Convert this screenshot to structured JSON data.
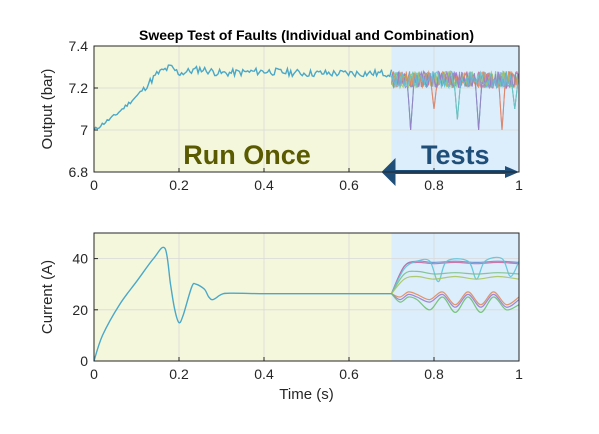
{
  "chart_data": [
    {
      "type": "line",
      "title": "Sweep Test of Faults (Individual and Combination)",
      "xlabel": "",
      "ylabel": "Output (bar)",
      "xlim": [
        0,
        1
      ],
      "ylim": [
        6.8,
        7.4
      ],
      "x_ticks": [
        "0",
        "0.2",
        "0.4",
        "0.6",
        "0.8",
        "1"
      ],
      "y_ticks": [
        "6.8",
        "7",
        "7.2",
        "7.4"
      ],
      "grid": true,
      "regions": [
        {
          "label": "Run Once",
          "x_range": [
            0,
            0.7
          ],
          "color": "#f5f7dc",
          "text_color": "#5a5a00"
        },
        {
          "label": "Tests",
          "x_range": [
            0.7,
            1
          ],
          "color": "#dcedfb",
          "text_color": "#1f4e79"
        }
      ],
      "arrow": {
        "from": 0.7,
        "to": 1,
        "color": "#1f4e79"
      },
      "series_color": "#4aa8c8",
      "baseline": [
        [
          0,
          7.0
        ],
        [
          0.05,
          7.07
        ],
        [
          0.1,
          7.16
        ],
        [
          0.15,
          7.27
        ],
        [
          0.18,
          7.3
        ],
        [
          0.2,
          7.27
        ],
        [
          0.25,
          7.29
        ],
        [
          0.3,
          7.27
        ],
        [
          0.4,
          7.28
        ],
        [
          0.5,
          7.27
        ],
        [
          0.6,
          7.27
        ],
        [
          0.7,
          7.27
        ]
      ],
      "test_noise": {
        "start": 0.7,
        "end": 1.0,
        "center": 7.24,
        "spread": 0.04
      },
      "dips": [
        {
          "x": 0.745,
          "y": 7.0
        },
        {
          "x": 0.8,
          "y": 7.1
        },
        {
          "x": 0.855,
          "y": 7.05
        },
        {
          "x": 0.905,
          "y": 7.0
        },
        {
          "x": 0.96,
          "y": 7.0
        },
        {
          "x": 0.99,
          "y": 7.1
        }
      ]
    },
    {
      "type": "line",
      "title": "",
      "xlabel": "Time (s)",
      "ylabel": "Current (A)",
      "xlim": [
        0,
        1
      ],
      "ylim": [
        0,
        50
      ],
      "x_ticks": [
        "0",
        "0.2",
        "0.4",
        "0.6",
        "0.8",
        "1"
      ],
      "y_ticks": [
        "0",
        "20",
        "40"
      ],
      "grid": true,
      "regions": [
        {
          "label": "",
          "x_range": [
            0,
            0.7
          ],
          "color": "#f5f7dc"
        },
        {
          "label": "",
          "x_range": [
            0.7,
            1
          ],
          "color": "#dcedfb"
        }
      ],
      "base_series": {
        "color": "#4aa8c8",
        "points": [
          [
            0,
            0
          ],
          [
            0.02,
            10
          ],
          [
            0.06,
            22
          ],
          [
            0.1,
            31
          ],
          [
            0.14,
            40
          ],
          [
            0.167,
            44
          ],
          [
            0.18,
            30
          ],
          [
            0.19,
            20
          ],
          [
            0.2,
            15
          ],
          [
            0.21,
            18
          ],
          [
            0.23,
            29
          ],
          [
            0.24,
            30
          ],
          [
            0.26,
            28
          ],
          [
            0.27,
            25
          ],
          [
            0.28,
            24
          ],
          [
            0.3,
            26
          ],
          [
            0.32,
            26.5
          ],
          [
            0.4,
            26.3
          ],
          [
            0.5,
            26.3
          ],
          [
            0.6,
            26.3
          ],
          [
            0.7,
            26.3
          ]
        ]
      },
      "test_series": [
        {
          "color": "#6a8fd0",
          "points": [
            [
              0.7,
              26.3
            ],
            [
              0.73,
              37
            ],
            [
              0.76,
              39
            ],
            [
              0.8,
              38.5
            ],
            [
              0.85,
              39
            ],
            [
              0.9,
              38.5
            ],
            [
              0.95,
              39
            ],
            [
              1.0,
              38.5
            ]
          ]
        },
        {
          "color": "#c86aa0",
          "points": [
            [
              0.7,
              26.3
            ],
            [
              0.73,
              37
            ],
            [
              0.76,
              38.5
            ],
            [
              0.8,
              38
            ],
            [
              0.85,
              38.5
            ],
            [
              0.9,
              38
            ],
            [
              0.95,
              38.5
            ],
            [
              1.0,
              38
            ]
          ]
        },
        {
          "color": "#5bc4d8",
          "points": [
            [
              0.7,
              26.3
            ],
            [
              0.73,
              36
            ],
            [
              0.76,
              39
            ],
            [
              0.79,
              39
            ],
            [
              0.81,
              31
            ],
            [
              0.83,
              39
            ],
            [
              0.88,
              39
            ],
            [
              0.9,
              32
            ],
            [
              0.92,
              39
            ],
            [
              0.96,
              40
            ],
            [
              0.98,
              33
            ],
            [
              1.0,
              39
            ]
          ]
        },
        {
          "color": "#7ac08a",
          "points": [
            [
              0.7,
              26.3
            ],
            [
              0.73,
              34
            ],
            [
              0.76,
              35
            ],
            [
              0.8,
              34
            ],
            [
              0.85,
              34.5
            ],
            [
              0.9,
              34
            ],
            [
              0.95,
              34.5
            ],
            [
              1.0,
              34
            ]
          ]
        },
        {
          "color": "#a9c460",
          "points": [
            [
              0.7,
              26.3
            ],
            [
              0.73,
              32
            ],
            [
              0.76,
              33
            ],
            [
              0.8,
              32
            ],
            [
              0.85,
              33
            ],
            [
              0.9,
              32
            ],
            [
              0.95,
              33
            ],
            [
              1.0,
              32
            ]
          ]
        },
        {
          "color": "#e08a5a",
          "points": [
            [
              0.7,
              26.3
            ],
            [
              0.72,
              25
            ],
            [
              0.74,
              27
            ],
            [
              0.76,
              26
            ],
            [
              0.79,
              24
            ],
            [
              0.82,
              27
            ],
            [
              0.85,
              22
            ],
            [
              0.88,
              27
            ],
            [
              0.91,
              22
            ],
            [
              0.94,
              27
            ],
            [
              0.97,
              22
            ],
            [
              1.0,
              25
            ]
          ]
        },
        {
          "color": "#9a7ad0",
          "points": [
            [
              0.7,
              26.3
            ],
            [
              0.72,
              24
            ],
            [
              0.74,
              26
            ],
            [
              0.76,
              25
            ],
            [
              0.79,
              23
            ],
            [
              0.82,
              26
            ],
            [
              0.85,
              21
            ],
            [
              0.88,
              26
            ],
            [
              0.91,
              21
            ],
            [
              0.94,
              26
            ],
            [
              0.97,
              21
            ],
            [
              1.0,
              24
            ]
          ]
        },
        {
          "color": "#6cbf70",
          "points": [
            [
              0.7,
              26.3
            ],
            [
              0.72,
              23
            ],
            [
              0.74,
              25
            ],
            [
              0.76,
              24
            ],
            [
              0.79,
              20
            ],
            [
              0.82,
              25
            ],
            [
              0.85,
              19
            ],
            [
              0.88,
              25
            ],
            [
              0.91,
              19
            ],
            [
              0.94,
              25
            ],
            [
              0.97,
              20
            ],
            [
              1.0,
              22
            ]
          ]
        }
      ]
    }
  ]
}
